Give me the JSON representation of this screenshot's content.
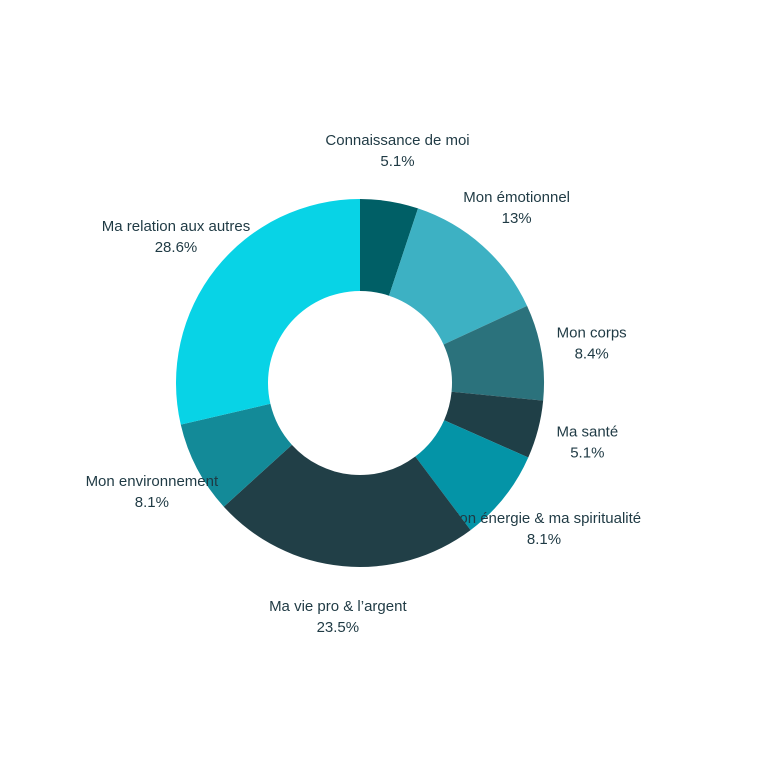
{
  "chart_data": {
    "type": "pie",
    "variant": "donut",
    "title": "",
    "unit": "%",
    "slices": [
      {
        "label": "Connaissance de moi",
        "value": 5.1,
        "value_label": "5.1%",
        "color": "#005f66"
      },
      {
        "label": "Mon émotionnel",
        "value": 13,
        "value_label": "13%",
        "color": "#3db1c3"
      },
      {
        "label": "Mon corps",
        "value": 8.4,
        "value_label": "8.4%",
        "color": "#2b727c"
      },
      {
        "label": "Ma santé",
        "value": 5.1,
        "value_label": "5.1%",
        "color": "#1f3f47"
      },
      {
        "label": "Mon énergie & ma spiritualité",
        "value": 8.1,
        "value_label": "8.1%",
        "color": "#0494a7"
      },
      {
        "label": "Ma vie pro & l’argent",
        "value": 23.5,
        "value_label": "23.5%",
        "color": "#213f47"
      },
      {
        "label": "Mon environnement",
        "value": 8.1,
        "value_label": "8.1%",
        "color": "#138a98"
      },
      {
        "label": "Ma relation aux autres",
        "value": 28.6,
        "value_label": "28.6%",
        "color": "#08d3e6"
      }
    ]
  }
}
